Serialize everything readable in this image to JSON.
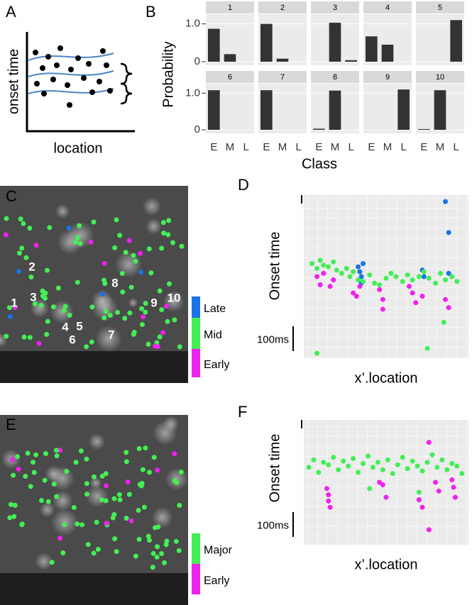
{
  "panel_labels": [
    "A",
    "B",
    "C",
    "D",
    "E",
    "F"
  ],
  "schematic": {
    "y_label": "onset time",
    "x_label": "location"
  },
  "image_C": {
    "cell_labels": [
      "1",
      "2",
      "3",
      "4",
      "5",
      "6",
      "7",
      "8",
      "9",
      "10"
    ]
  },
  "chart_data": [
    {
      "type": "bar-facets",
      "y_label": "Probability",
      "x_label": "Class",
      "categories": [
        "E",
        "M",
        "L"
      ],
      "color": "#333333",
      "ylim": [
        0,
        1.2
      ],
      "yticks": [
        0,
        {
          "value": 1,
          "label": "1.0"
        }
      ],
      "series": [
        {
          "name": "1",
          "values": [
            0.87,
            0.2,
            0
          ]
        },
        {
          "name": "2",
          "values": [
            1.0,
            0.08,
            0
          ]
        },
        {
          "name": "3",
          "values": [
            0,
            1.03,
            0.04
          ]
        },
        {
          "name": "4",
          "values": [
            0.67,
            0.45,
            0
          ]
        },
        {
          "name": "5",
          "values": [
            0,
            0,
            1.1
          ]
        },
        {
          "name": "6",
          "values": [
            1.08,
            0,
            0
          ]
        },
        {
          "name": "7",
          "values": [
            1.08,
            0,
            0
          ]
        },
        {
          "name": "8",
          "values": [
            0.03,
            1.07,
            0
          ]
        },
        {
          "name": "9",
          "values": [
            0,
            0,
            1.1
          ]
        },
        {
          "name": "10",
          "values": [
            0.02,
            1.08,
            0
          ]
        }
      ]
    },
    {
      "type": "scatter",
      "y_label": "Onset time",
      "x_label": "x’.location",
      "scale_bar_label": "100ms",
      "xlim": [
        0,
        100
      ],
      "ylim": [
        0,
        100
      ],
      "series": [
        {
          "name": "Late",
          "color": "#1a73e8",
          "x": [
            33,
            34,
            35,
            35,
            36,
            72,
            73,
            86,
            88,
            88
          ],
          "values": [
            56,
            53,
            50,
            46,
            58,
            54,
            50,
            96,
            77,
            52
          ]
        },
        {
          "name": "Mid",
          "color": "#44ee55",
          "x": [
            5,
            8,
            10,
            12,
            15,
            18,
            20,
            23,
            26,
            28,
            30,
            33,
            36,
            40,
            43,
            46,
            50,
            53,
            56,
            60,
            63,
            66,
            70,
            73,
            76,
            80,
            83,
            86,
            90,
            93,
            8,
            75,
            85
          ],
          "values": [
            58,
            55,
            60,
            57,
            56,
            59,
            54,
            52,
            55,
            50,
            53,
            48,
            47,
            51,
            46,
            45,
            49,
            52,
            50,
            47,
            51,
            48,
            50,
            53,
            49,
            46,
            52,
            48,
            50,
            47,
            3,
            6,
            22
          ]
        },
        {
          "name": "Early",
          "color": "#ee22ee",
          "x": [
            8,
            10,
            12,
            16,
            18,
            30,
            32,
            34,
            46,
            48,
            48,
            64,
            66,
            68,
            72,
            86,
            88
          ],
          "values": [
            50,
            45,
            52,
            44,
            48,
            40,
            38,
            44,
            42,
            36,
            30,
            44,
            40,
            34,
            38,
            36,
            31
          ]
        }
      ]
    },
    {
      "type": "scatter",
      "y_label": "Onset time",
      "x_label": "x’.location",
      "scale_bar_label": "100ms",
      "xlim": [
        0,
        100
      ],
      "ylim": [
        0,
        100
      ],
      "series": [
        {
          "name": "Major",
          "color": "#44ee55",
          "x": [
            3,
            6,
            9,
            12,
            15,
            18,
            21,
            24,
            27,
            30,
            33,
            36,
            39,
            42,
            45,
            48,
            51,
            54,
            57,
            60,
            63,
            66,
            69,
            72,
            75,
            78,
            81,
            84,
            87,
            90,
            93,
            96,
            40,
            70
          ],
          "values": [
            62,
            68,
            58,
            66,
            64,
            70,
            60,
            67,
            63,
            69,
            58,
            65,
            71,
            62,
            66,
            60,
            68,
            57,
            64,
            70,
            61,
            67,
            63,
            59,
            66,
            72,
            62,
            68,
            60,
            65,
            63,
            57,
            45,
            42
          ]
        },
        {
          "name": "Early",
          "color": "#ee22ee",
          "x": [
            14,
            15,
            15,
            16,
            46,
            48,
            50,
            70,
            72,
            76,
            80,
            82,
            90,
            91,
            92,
            76
          ],
          "values": [
            45,
            40,
            35,
            30,
            50,
            48,
            38,
            36,
            30,
            12,
            50,
            43,
            52,
            46,
            38,
            82
          ]
        }
      ]
    }
  ]
}
